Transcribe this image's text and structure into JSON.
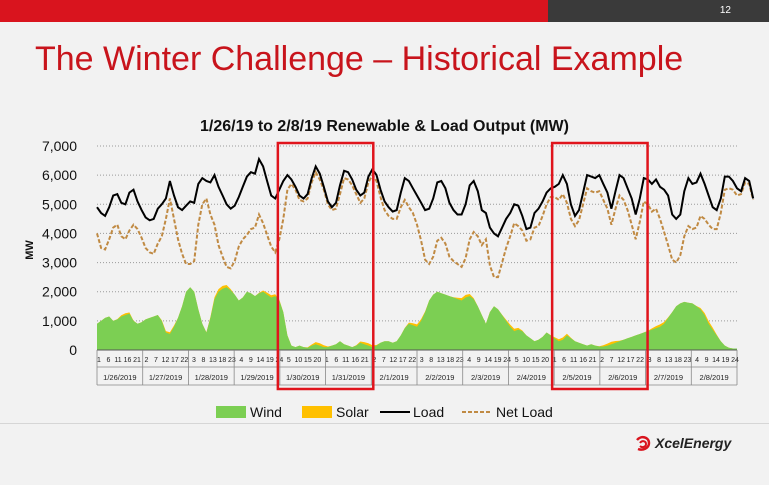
{
  "slide": {
    "number": "12",
    "title": "The Winter Challenge – Historical Example",
    "logo_text": "XcelEnergy"
  },
  "colors": {
    "wind": "#7ccf53",
    "solar": "#ffc000",
    "load": "#000000",
    "net_load": "#c08a43",
    "highlight": "#e0141c",
    "title_red": "#c8141c"
  },
  "chart_data": {
    "type": "area",
    "title": "1/26/19 to 2/8/19 Renewable & Load Output (MW)",
    "ylabel": "MW",
    "ylim": [
      0,
      7000
    ],
    "yticks": [
      0,
      1000,
      2000,
      3000,
      4000,
      5000,
      6000,
      7000
    ],
    "ytick_labels": [
      "0",
      "1,000",
      "2,000",
      "3,000",
      "4,000",
      "5,000",
      "6,000",
      "7,000"
    ],
    "grid": true,
    "legend_position": "bottom",
    "hour_tick_labels": [
      "1",
      "6",
      "11",
      "16",
      "21",
      "2",
      "7",
      "12",
      "17",
      "22",
      "3",
      "8",
      "13",
      "18",
      "23",
      "4",
      "9",
      "14",
      "19",
      "24",
      "5",
      "10",
      "15",
      "20",
      "1",
      "6",
      "11",
      "16",
      "21",
      "2",
      "7",
      "12",
      "17",
      "22",
      "3",
      "8",
      "13",
      "18",
      "23",
      "4",
      "9",
      "14",
      "19",
      "24",
      "5",
      "10",
      "15",
      "20",
      "1",
      "6",
      "11",
      "16",
      "21",
      "2",
      "7",
      "12",
      "17",
      "22",
      "3",
      "8",
      "13",
      "18",
      "23",
      "4",
      "9",
      "14",
      "19",
      "24"
    ],
    "days": [
      "1/26/2019",
      "1/27/2019",
      "1/28/2019",
      "1/29/2019",
      "1/30/2019",
      "1/31/2019",
      "2/1/2019",
      "2/2/2019",
      "2/3/2019",
      "2/4/2019",
      "2/5/2019",
      "2/6/2019",
      "2/7/2019",
      "2/8/2019"
    ],
    "highlight_day_ranges": [
      [
        4,
        5
      ],
      [
        10,
        11
      ]
    ],
    "series": [
      {
        "name": "Wind",
        "kind": "area",
        "values": [
          900,
          1000,
          1100,
          1150,
          1000,
          1050,
          1150,
          1200,
          1250,
          1000,
          900,
          950,
          1050,
          1100,
          1150,
          1200,
          1000,
          600,
          550,
          800,
          1100,
          1500,
          2000,
          2150,
          2000,
          1400,
          900,
          600,
          1100,
          1750,
          2000,
          2100,
          2150,
          2050,
          1900,
          1700,
          1800,
          2000,
          1950,
          1850,
          1950,
          2000,
          1900,
          1800,
          1850,
          1700,
          1300,
          500,
          150,
          100,
          150,
          100,
          80,
          150,
          200,
          150,
          100,
          100,
          150,
          200,
          300,
          200,
          150,
          100,
          150,
          250,
          200,
          150,
          100,
          150,
          250,
          300,
          300,
          250,
          300,
          500,
          750,
          900,
          850,
          800,
          1000,
          1300,
          1700,
          1900,
          2000,
          1950,
          1900,
          1850,
          1800,
          1750,
          1700,
          1800,
          1850,
          1750,
          1500,
          1200,
          900,
          1300,
          1500,
          1400,
          1200,
          1000,
          800,
          650,
          700,
          650,
          500,
          400,
          300,
          350,
          450,
          600,
          500,
          400,
          300,
          350,
          500,
          400,
          300,
          250,
          200,
          150,
          200,
          150,
          120,
          120,
          150,
          200,
          250,
          300,
          350,
          400,
          450,
          500,
          550,
          600,
          650,
          700,
          750,
          800,
          900,
          1100,
          1300,
          1500,
          1600,
          1650,
          1620,
          1600,
          1500,
          1400,
          1200,
          900,
          700,
          500,
          300,
          150,
          80,
          50,
          50
        ]
      },
      {
        "name": "Solar",
        "kind": "stacked_area",
        "values": [
          0,
          0,
          0,
          0,
          0,
          10,
          40,
          60,
          40,
          10,
          0,
          0,
          0,
          0,
          0,
          0,
          20,
          50,
          60,
          40,
          0,
          0,
          0,
          0,
          0,
          0,
          0,
          10,
          30,
          60,
          90,
          100,
          80,
          40,
          0,
          0,
          0,
          0,
          0,
          0,
          10,
          40,
          70,
          80,
          60,
          30,
          0,
          0,
          0,
          0,
          0,
          0,
          10,
          40,
          70,
          80,
          60,
          20,
          0,
          0,
          0,
          0,
          0,
          0,
          10,
          40,
          70,
          80,
          60,
          20,
          0,
          0,
          0,
          0,
          0,
          0,
          10,
          40,
          70,
          80,
          60,
          20,
          0,
          0,
          0,
          0,
          0,
          0,
          10,
          40,
          80,
          90,
          70,
          30,
          0,
          0,
          0,
          0,
          0,
          0,
          10,
          40,
          70,
          80,
          60,
          20,
          0,
          0,
          0,
          0,
          0,
          0,
          10,
          40,
          70,
          80,
          60,
          20,
          0,
          0,
          0,
          0,
          0,
          0,
          10,
          40,
          70,
          80,
          60,
          20,
          0,
          0,
          0,
          0,
          0,
          0,
          10,
          40,
          70,
          80,
          60,
          20,
          0,
          0,
          0,
          0,
          0,
          0,
          10,
          40,
          70,
          90,
          70,
          30,
          0,
          0,
          0,
          0
        ]
      },
      {
        "name": "Load",
        "kind": "line",
        "values": [
          4900,
          4700,
          4600,
          4900,
          5300,
          5350,
          5050,
          5000,
          5400,
          5500,
          5100,
          4800,
          4550,
          4450,
          4500,
          4850,
          5000,
          5200,
          5800,
          5300,
          4900,
          4800,
          4950,
          5100,
          5050,
          5700,
          5900,
          5800,
          5750,
          6000,
          5600,
          5300,
          5000,
          4850,
          4950,
          5250,
          5600,
          5950,
          6100,
          6050,
          6550,
          6300,
          5800,
          5300,
          5200,
          5500,
          5800,
          6000,
          5850,
          5600,
          5300,
          5200,
          5350,
          5900,
          6300,
          6050,
          5600,
          5100,
          4900,
          5050,
          5650,
          6150,
          6100,
          5850,
          5500,
          5300,
          5400,
          5950,
          6200,
          6000,
          5500,
          5100,
          4900,
          4750,
          4800,
          5400,
          5900,
          5800,
          5550,
          5300,
          5050,
          4800,
          4850,
          5200,
          5750,
          5800,
          5550,
          5050,
          4800,
          4650,
          4650,
          5000,
          5650,
          5800,
          5450,
          4800,
          4700,
          4200,
          4000,
          3900,
          4200,
          4500,
          4700,
          5000,
          4950,
          4600,
          4150,
          4200,
          4700,
          4850,
          5100,
          5400,
          5550,
          5600,
          5700,
          6000,
          5700,
          5000,
          4600,
          4800,
          5400,
          6000,
          5950,
          5900,
          6000,
          5700,
          5400,
          4850,
          5450,
          6000,
          5900,
          5550,
          5200,
          4650,
          5200,
          5900,
          5850,
          5700,
          5850,
          5600,
          5500,
          5300,
          4650,
          4500,
          4650,
          5450,
          5900,
          5700,
          5750,
          6050,
          5700,
          5300,
          4900,
          4800,
          5200,
          5950,
          5950,
          5800,
          5550,
          5450,
          5900,
          5800,
          5200
        ]
      },
      {
        "name": "Net Load",
        "kind": "dashed_line",
        "values": [
          4000,
          3500,
          3450,
          3800,
          4200,
          4300,
          3900,
          3800,
          4100,
          4300,
          4150,
          3850,
          3500,
          3350,
          3300,
          3650,
          3900,
          4500,
          5200,
          4500,
          3800,
          3300,
          2950,
          2950,
          3050,
          4300,
          5000,
          5200,
          4650,
          4300,
          3600,
          3200,
          2850,
          2800,
          3050,
          3550,
          3800,
          3950,
          4150,
          4200,
          4650,
          4350,
          3950,
          3550,
          3350,
          3800,
          4500,
          5500,
          5700,
          5500,
          5150,
          5100,
          5200,
          5750,
          6100,
          5850,
          5500,
          5000,
          4800,
          4850,
          5350,
          5900,
          5850,
          5650,
          5350,
          5050,
          5200,
          5750,
          6000,
          5800,
          5250,
          4800,
          4600,
          4500,
          4500,
          4900,
          5150,
          4900,
          4700,
          4300,
          3750,
          3100,
          2950,
          3200,
          3750,
          3850,
          3650,
          3200,
          3050,
          2950,
          2850,
          3150,
          3800,
          4050,
          3900,
          3600,
          3800,
          2900,
          2500,
          2500,
          3000,
          3500,
          3900,
          4350,
          4250,
          4100,
          3750,
          3800,
          4200,
          4250,
          4600,
          5000,
          5250,
          5250,
          5150,
          5350,
          5050,
          4500,
          4250,
          4450,
          5000,
          5550,
          5450,
          5400,
          5450,
          5150,
          4850,
          4300,
          4850,
          5300,
          5150,
          4800,
          4300,
          3800,
          4400,
          5100,
          5000,
          4750,
          4850,
          4500,
          4050,
          3600,
          3100,
          3000,
          3250,
          3900,
          4250,
          4150,
          4200,
          4600,
          4500,
          4300,
          4150,
          4150,
          4700,
          5500,
          5550,
          5500,
          5300,
          5350,
          5750,
          5700,
          5150
        ]
      }
    ]
  }
}
